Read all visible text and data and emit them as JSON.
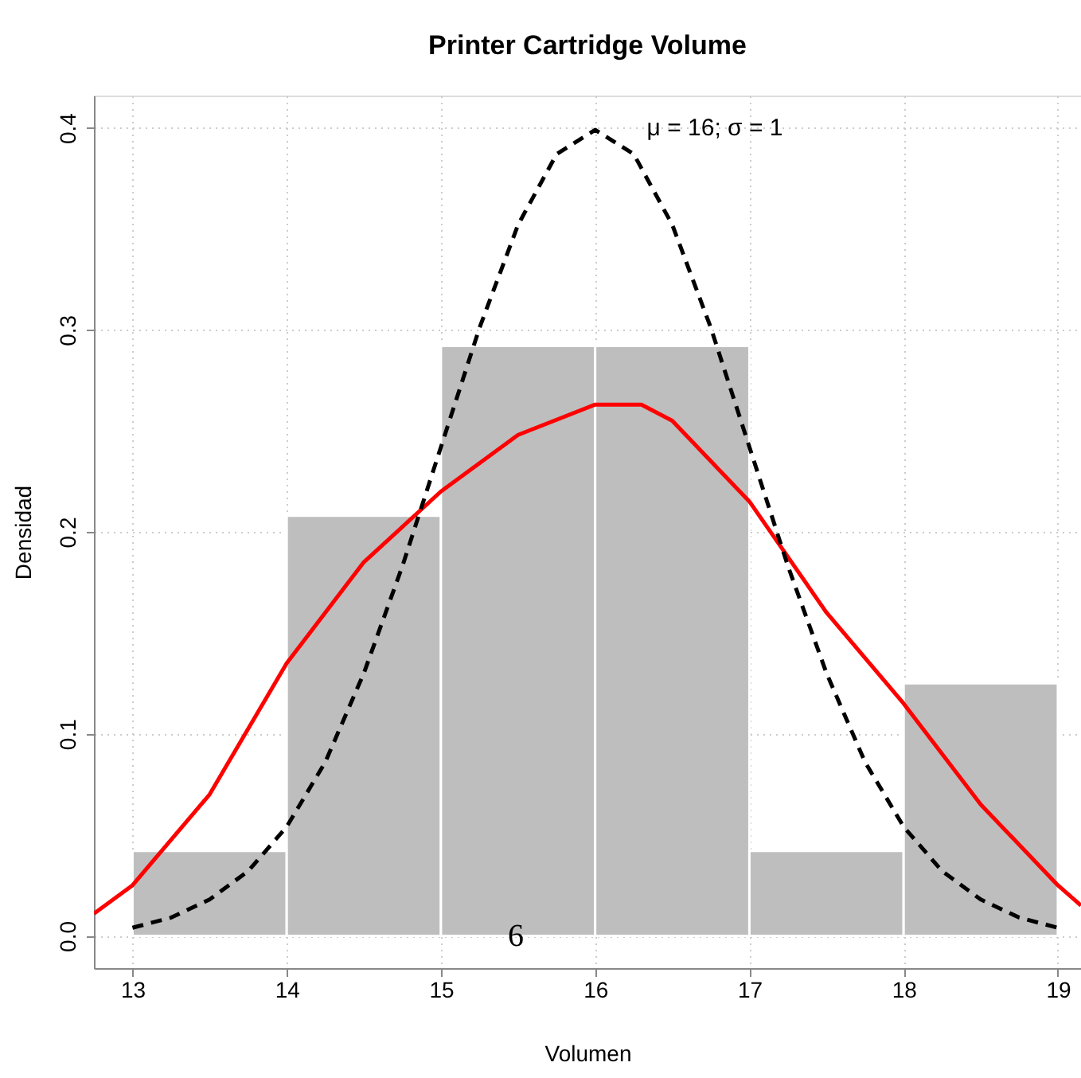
{
  "chart_data": {
    "type": "histogram",
    "title": "Printer Cartridge Volume",
    "xlabel": "Volumen",
    "ylabel": "Densidad",
    "bins": [
      13,
      14,
      15,
      16,
      17,
      18,
      19
    ],
    "values": [
      0.042,
      0.208,
      0.292,
      0.292,
      0.042,
      0.125
    ],
    "color": "#bebebe",
    "series": [
      {
        "type": "line",
        "color": "#ff0000",
        "line_style": "solid",
        "x": [
          12.75,
          13,
          13.5,
          14,
          14.5,
          15,
          15.5,
          16,
          16.3,
          16.5,
          17,
          17.5,
          18,
          18.5,
          19,
          19.15
        ],
        "values": [
          0.011,
          0.025,
          0.07,
          0.135,
          0.185,
          0.22,
          0.248,
          0.263,
          0.263,
          0.255,
          0.215,
          0.16,
          0.115,
          0.065,
          0.025,
          0.015
        ]
      },
      {
        "type": "line",
        "color": "#000000",
        "line_style": "dashed",
        "x": [
          13,
          13.25,
          13.5,
          13.75,
          14,
          14.25,
          14.5,
          14.75,
          15,
          15.25,
          15.5,
          15.75,
          16,
          16.25,
          16.5,
          16.75,
          17,
          17.25,
          17.5,
          17.75,
          18,
          18.25,
          18.5,
          18.75,
          19
        ],
        "values": [
          0.004,
          0.009,
          0.018,
          0.032,
          0.054,
          0.086,
          0.13,
          0.183,
          0.242,
          0.301,
          0.352,
          0.387,
          0.399,
          0.387,
          0.352,
          0.301,
          0.242,
          0.183,
          0.13,
          0.086,
          0.054,
          0.032,
          0.018,
          0.009,
          0.004
        ]
      }
    ],
    "xlim": [
      12.75,
      19.15
    ],
    "ylim": [
      -0.016,
      0.416
    ],
    "xticks": [
      13,
      14,
      15,
      16,
      17,
      18,
      19
    ],
    "yticks": [
      {
        "value": 0,
        "label": "0.0"
      },
      0.1,
      0.2,
      0.3,
      0.4
    ],
    "grid": true,
    "legend": false,
    "annotations": [
      "μ = 16; σ = 1",
      "6"
    ]
  }
}
